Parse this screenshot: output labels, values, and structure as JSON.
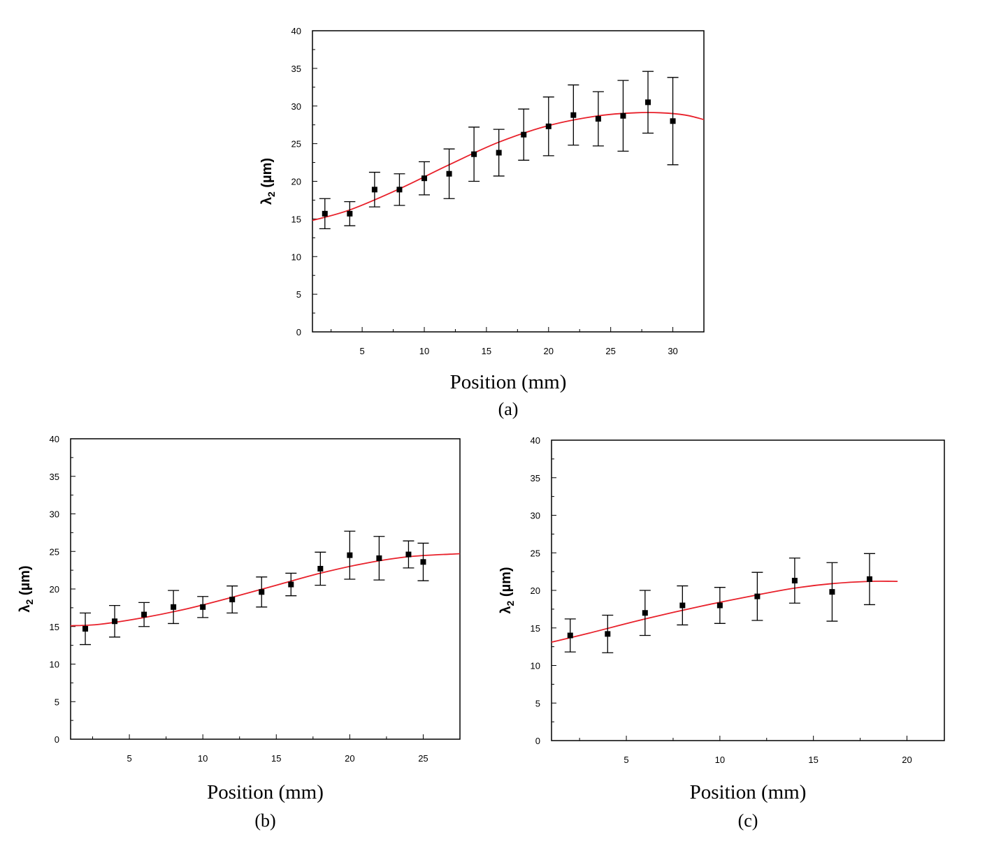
{
  "chart_data": [
    {
      "panel": "(a)",
      "type": "scatter",
      "xlabel": "Position (mm)",
      "ylabel": "λ",
      "ylabel_subscript": "2",
      "ylabel_unit": " (µm)",
      "xlim": [
        1,
        32.5
      ],
      "ylim": [
        0,
        40
      ],
      "xticks": [
        5,
        10,
        15,
        20,
        25,
        30
      ],
      "yticks": [
        0,
        5,
        10,
        15,
        20,
        25,
        30,
        35,
        40
      ],
      "points": [
        {
          "x": 2,
          "y": 15.7,
          "err": 2.0
        },
        {
          "x": 4,
          "y": 15.7,
          "err": 1.6
        },
        {
          "x": 6,
          "y": 18.9,
          "err": 2.3
        },
        {
          "x": 8,
          "y": 18.9,
          "err": 2.1
        },
        {
          "x": 10,
          "y": 20.4,
          "err": 2.2
        },
        {
          "x": 12,
          "y": 21.0,
          "err": 3.3
        },
        {
          "x": 14,
          "y": 23.6,
          "err": 3.6
        },
        {
          "x": 16,
          "y": 23.8,
          "err": 3.1
        },
        {
          "x": 18,
          "y": 26.2,
          "err": 3.4
        },
        {
          "x": 20,
          "y": 27.3,
          "err": 3.9
        },
        {
          "x": 22,
          "y": 28.8,
          "err": 4.0
        },
        {
          "x": 24,
          "y": 28.3,
          "err": 3.6
        },
        {
          "x": 26,
          "y": 28.7,
          "err": 4.7
        },
        {
          "x": 28,
          "y": 30.5,
          "err": 4.1
        },
        {
          "x": 30,
          "y": 28.0,
          "err": 5.8
        }
      ],
      "fit": [
        [
          1,
          14.8
        ],
        [
          4,
          16.2
        ],
        [
          8,
          19.0
        ],
        [
          12,
          22.2
        ],
        [
          16,
          25.2
        ],
        [
          20,
          27.4
        ],
        [
          24,
          28.7
        ],
        [
          27,
          29.1
        ],
        [
          29,
          29.1
        ],
        [
          31,
          28.8
        ],
        [
          32.5,
          28.2
        ]
      ],
      "fit_color": "#e8202a"
    },
    {
      "panel": "(b)",
      "type": "scatter",
      "xlabel": "Position (mm)",
      "ylabel": "λ",
      "ylabel_subscript": "2",
      "ylabel_unit": " (µm)",
      "xlim": [
        1,
        27.5
      ],
      "ylim": [
        0,
        40
      ],
      "xticks": [
        5,
        10,
        15,
        20,
        25
      ],
      "yticks": [
        0,
        5,
        10,
        15,
        20,
        25,
        30,
        35,
        40
      ],
      "points": [
        {
          "x": 2,
          "y": 14.7,
          "err": 2.1
        },
        {
          "x": 4,
          "y": 15.7,
          "err": 2.1
        },
        {
          "x": 6,
          "y": 16.6,
          "err": 1.6
        },
        {
          "x": 8,
          "y": 17.6,
          "err": 2.2
        },
        {
          "x": 10,
          "y": 17.6,
          "err": 1.4
        },
        {
          "x": 12,
          "y": 18.6,
          "err": 1.8
        },
        {
          "x": 14,
          "y": 19.6,
          "err": 2.0
        },
        {
          "x": 16,
          "y": 20.6,
          "err": 1.5
        },
        {
          "x": 18,
          "y": 22.7,
          "err": 2.2
        },
        {
          "x": 20,
          "y": 24.5,
          "err": 3.2
        },
        {
          "x": 22,
          "y": 24.1,
          "err": 2.9
        },
        {
          "x": 24,
          "y": 24.6,
          "err": 1.8
        },
        {
          "x": 25,
          "y": 23.6,
          "err": 2.5
        }
      ],
      "fit": [
        [
          1,
          15.1
        ],
        [
          3,
          15.3
        ],
        [
          6,
          16.2
        ],
        [
          9,
          17.4
        ],
        [
          12,
          18.9
        ],
        [
          15,
          20.5
        ],
        [
          18,
          22.1
        ],
        [
          21,
          23.4
        ],
        [
          24,
          24.3
        ],
        [
          27.5,
          24.7
        ]
      ],
      "fit_color": "#e8202a"
    },
    {
      "panel": "(c)",
      "type": "scatter",
      "xlabel": "Position (mm)",
      "ylabel": "λ",
      "ylabel_subscript": "2",
      "ylabel_unit": " (µm)",
      "xlim": [
        1,
        22
      ],
      "ylim": [
        0,
        40
      ],
      "xticks": [
        5,
        10,
        15,
        20
      ],
      "yticks": [
        0,
        5,
        10,
        15,
        20,
        25,
        30,
        35,
        40
      ],
      "points": [
        {
          "x": 2,
          "y": 14.0,
          "err": 2.2
        },
        {
          "x": 4,
          "y": 14.2,
          "err": 2.5
        },
        {
          "x": 6,
          "y": 17.0,
          "err": 3.0
        },
        {
          "x": 8,
          "y": 18.0,
          "err": 2.6
        },
        {
          "x": 10,
          "y": 18.0,
          "err": 2.4
        },
        {
          "x": 12,
          "y": 19.2,
          "err": 3.2
        },
        {
          "x": 14,
          "y": 21.3,
          "err": 3.0
        },
        {
          "x": 16,
          "y": 19.8,
          "err": 3.9
        },
        {
          "x": 18,
          "y": 21.5,
          "err": 3.4
        }
      ],
      "fit": [
        [
          1,
          13.1
        ],
        [
          3,
          14.3
        ],
        [
          6,
          16.2
        ],
        [
          9,
          17.9
        ],
        [
          12,
          19.4
        ],
        [
          14,
          20.3
        ],
        [
          16,
          20.9
        ],
        [
          18,
          21.2
        ],
        [
          19.5,
          21.2
        ]
      ],
      "fit_color": "#e8202a"
    }
  ]
}
